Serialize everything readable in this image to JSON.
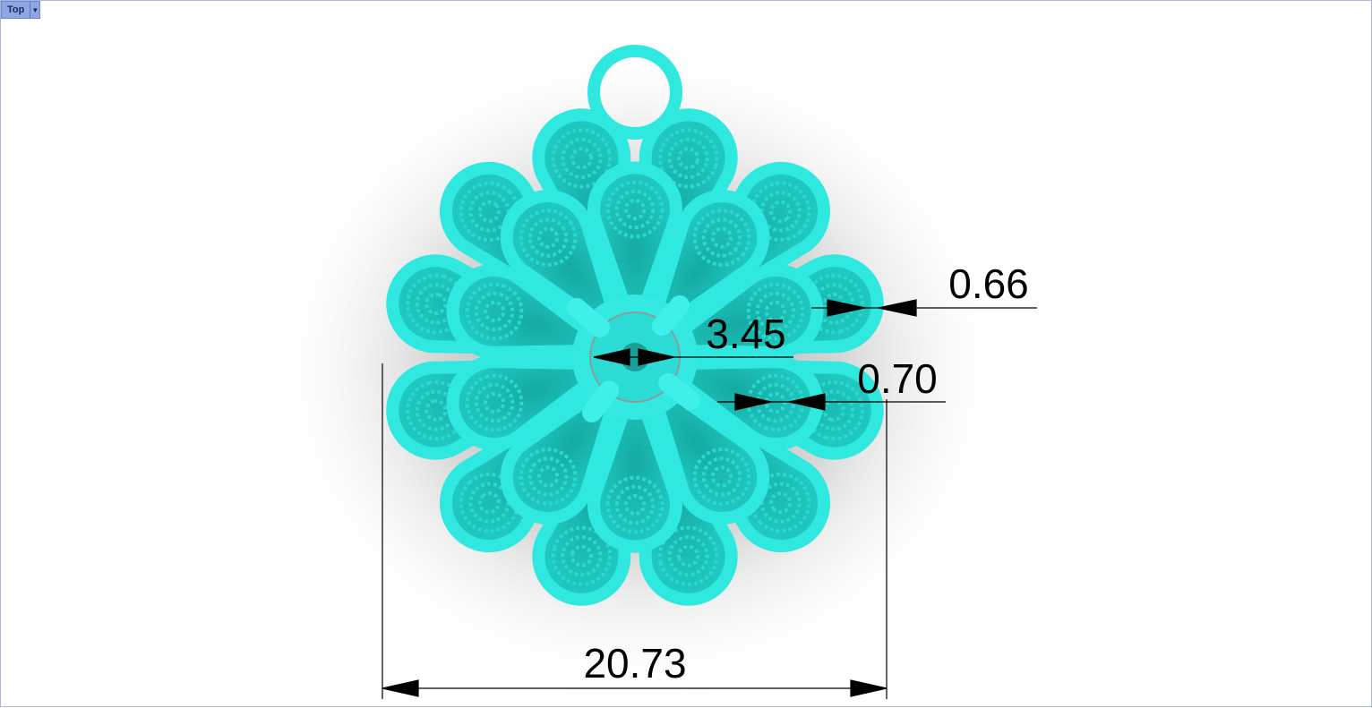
{
  "viewport": {
    "name": "Top",
    "dropdown_icon": "chevron-down-icon"
  },
  "model": {
    "color": "#2fe8df",
    "shadow_color": "#9a9a9a"
  },
  "dimensions": {
    "overall_width": "20.73",
    "center_diameter": "3.45",
    "wire_thickness_outer": "0.66",
    "wire_thickness_inner": "0.70"
  }
}
